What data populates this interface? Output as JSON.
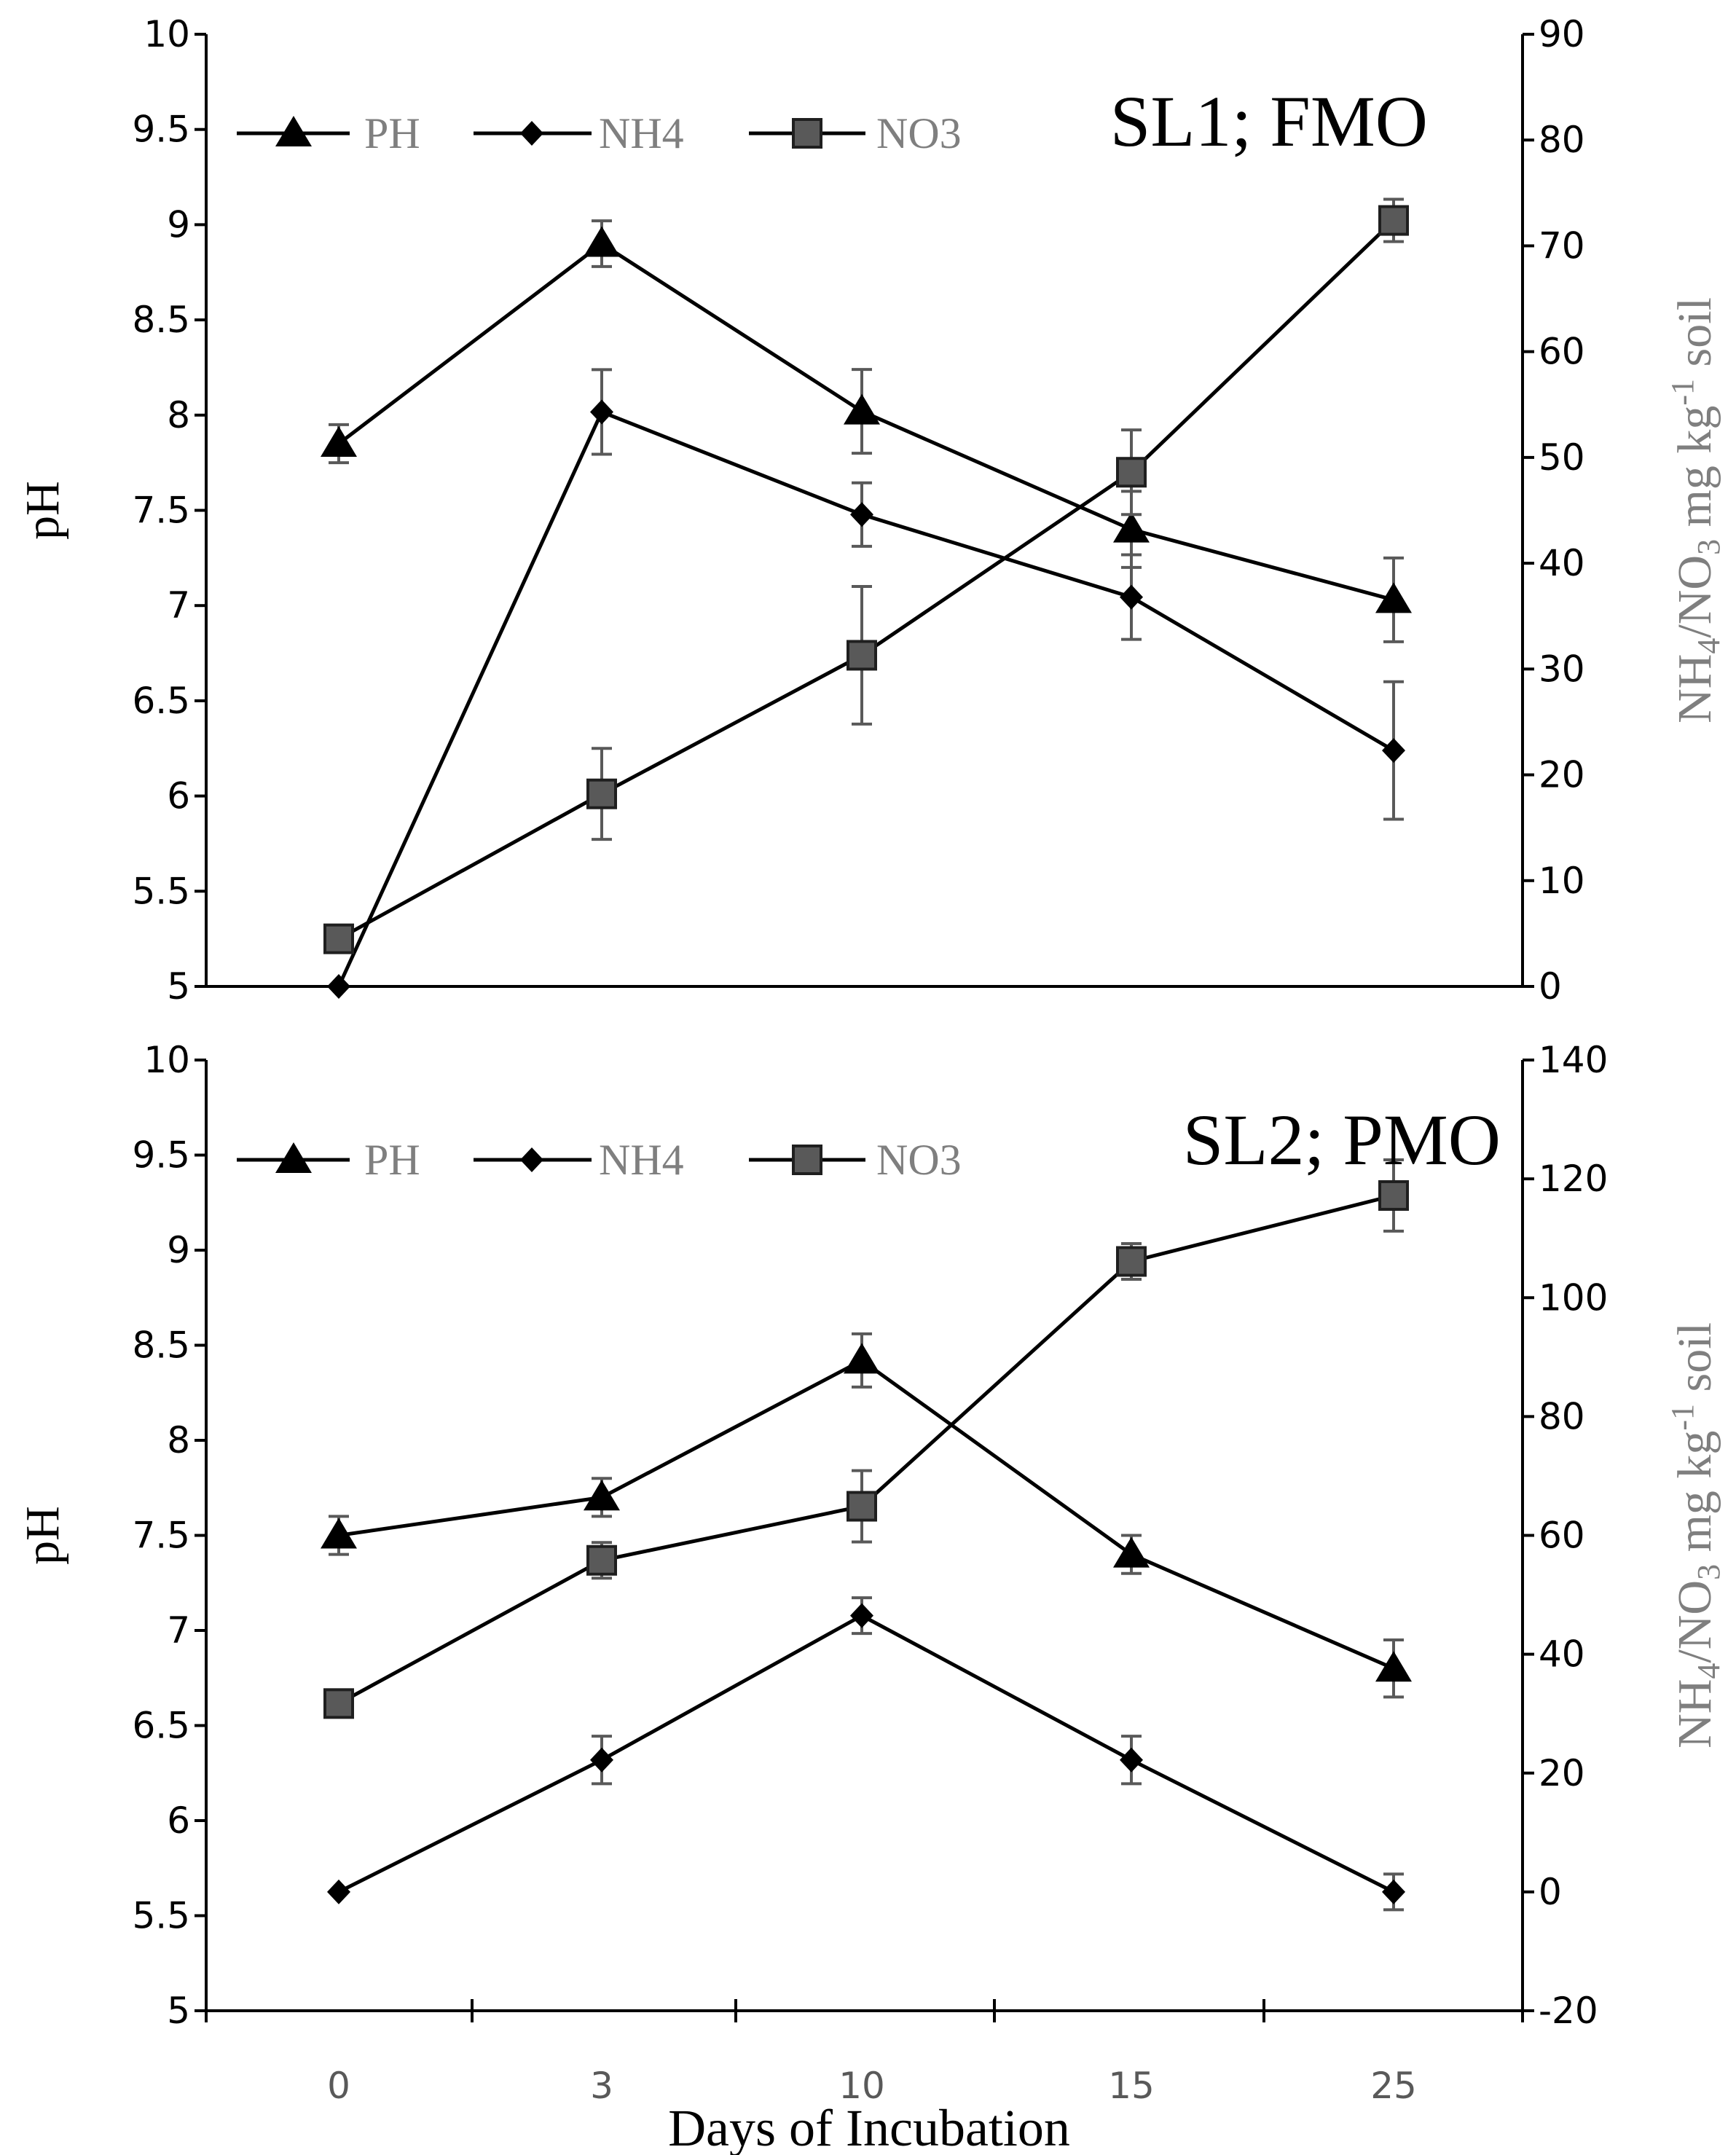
{
  "chart_data": [
    {
      "type": "line",
      "panel_label": "SL1; FMO",
      "x_categories": [
        "0",
        "3",
        "10",
        "15",
        "25"
      ],
      "ylabel_left": "pH",
      "ylabel_right_parts": [
        "NH",
        "4",
        "/NO",
        "3",
        " mg kg",
        "-1",
        " soil"
      ],
      "ylim_left": [
        5,
        10
      ],
      "yticks_left": [
        "5",
        "5.5",
        "6",
        "6.5",
        "7",
        "7.5",
        "8",
        "8.5",
        "9",
        "9.5",
        "10"
      ],
      "ylim_right": [
        0,
        90
      ],
      "yticks_right": [
        "0",
        "10",
        "20",
        "30",
        "40",
        "50",
        "60",
        "70",
        "80",
        "90"
      ],
      "legend": [
        "PH",
        "NH4",
        "NO3"
      ],
      "series": [
        {
          "name": "PH",
          "axis": "left",
          "marker": "triangle",
          "values": [
            7.85,
            8.9,
            8.02,
            7.4,
            7.03
          ],
          "errors": [
            0.1,
            0.12,
            0.22,
            0.2,
            0.22
          ]
        },
        {
          "name": "NH4",
          "axis": "right",
          "marker": "diamond",
          "values": [
            0,
            54.3,
            44.6,
            36.8,
            22.3
          ],
          "errors": [
            0,
            4,
            3,
            4,
            6.5
          ]
        },
        {
          "name": "NO3",
          "axis": "right",
          "marker": "square",
          "values": [
            4.5,
            18.2,
            31.3,
            48.6,
            72.4
          ],
          "errors": [
            0,
            4.3,
            6.5,
            4,
            2
          ]
        }
      ]
    },
    {
      "type": "line",
      "panel_label": "SL2; PMO",
      "x_categories": [
        "0",
        "3",
        "10",
        "15",
        "25"
      ],
      "xlabel": "Days of Incubation",
      "ylabel_left": "pH",
      "ylabel_right_parts": [
        "NH",
        "4",
        "/NO",
        "3",
        " mg kg",
        "-1",
        " soil"
      ],
      "ylim_left": [
        5,
        10
      ],
      "yticks_left": [
        "5",
        "5.5",
        "6",
        "6.5",
        "7",
        "7.5",
        "8",
        "8.5",
        "9",
        "9.5",
        "10"
      ],
      "ylim_right": [
        -20,
        140
      ],
      "yticks_right": [
        "-20",
        "0",
        "20",
        "40",
        "60",
        "80",
        "100",
        "120",
        "140"
      ],
      "legend": [
        "PH",
        "NH4",
        "NO3"
      ],
      "series": [
        {
          "name": "PH",
          "axis": "left",
          "marker": "triangle",
          "values": [
            7.5,
            7.7,
            8.42,
            7.4,
            6.8
          ],
          "errors": [
            0.1,
            0.1,
            0.14,
            0.1,
            0.15
          ]
        },
        {
          "name": "NH4",
          "axis": "right",
          "marker": "diamond",
          "values": [
            0,
            22.2,
            46.5,
            22.2,
            0
          ],
          "errors": [
            0,
            4,
            3,
            4,
            3
          ]
        },
        {
          "name": "NO3",
          "axis": "right",
          "marker": "square",
          "values": [
            31.7,
            55.8,
            64.9,
            106.1,
            117.2
          ],
          "errors": [
            0,
            3,
            6,
            3,
            6
          ]
        }
      ]
    }
  ]
}
